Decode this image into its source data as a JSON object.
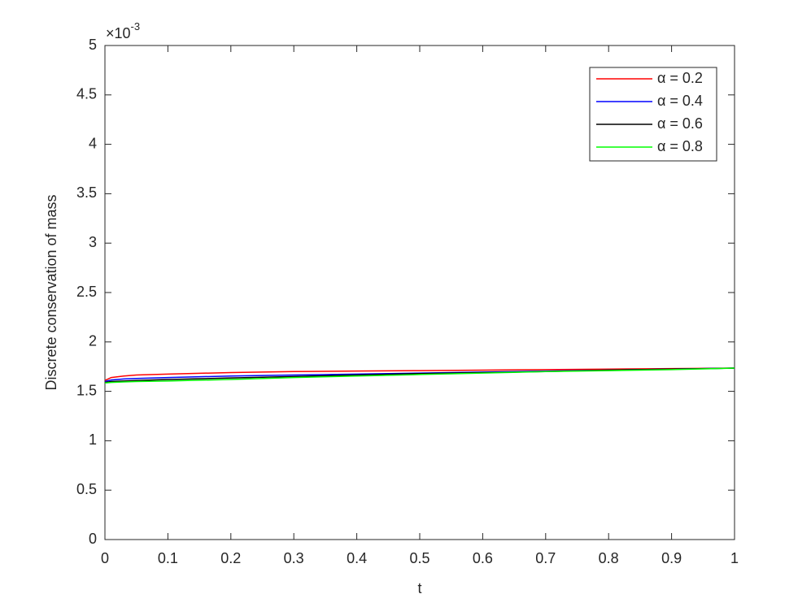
{
  "chart_data": {
    "type": "line",
    "xlabel": "t",
    "ylabel": "Discrete conservation of mass",
    "y_exponent": {
      "base": "×10",
      "power": "-3"
    },
    "x": [
      0,
      0.01,
      0.03,
      0.05,
      0.1,
      0.2,
      0.3,
      0.4,
      0.5,
      0.6,
      0.7,
      0.8,
      0.9,
      1
    ],
    "series": [
      {
        "name": "α = 0.2",
        "color": "#ff0000",
        "values": [
          1.61,
          1.64,
          1.655,
          1.665,
          1.675,
          1.69,
          1.7,
          1.705,
          1.71,
          1.715,
          1.72,
          1.725,
          1.73,
          1.735
        ]
      },
      {
        "name": "α = 0.4",
        "color": "#0000ff",
        "values": [
          1.6,
          1.615,
          1.625,
          1.63,
          1.64,
          1.655,
          1.665,
          1.675,
          1.685,
          1.695,
          1.705,
          1.715,
          1.725,
          1.735
        ]
      },
      {
        "name": "α = 0.6",
        "color": "#000000",
        "values": [
          1.59,
          1.6,
          1.605,
          1.61,
          1.62,
          1.635,
          1.65,
          1.665,
          1.68,
          1.69,
          1.7,
          1.715,
          1.725,
          1.735
        ]
      },
      {
        "name": "α = 0.8",
        "color": "#00ff00",
        "values": [
          1.585,
          1.59,
          1.595,
          1.6,
          1.605,
          1.62,
          1.64,
          1.655,
          1.67,
          1.685,
          1.7,
          1.71,
          1.72,
          1.735
        ]
      }
    ],
    "xlim": [
      0,
      1
    ],
    "xticks": [
      0,
      0.1,
      0.2,
      0.3,
      0.4,
      0.5,
      0.6,
      0.7,
      0.8,
      0.9,
      1
    ],
    "ylim": [
      0,
      5
    ],
    "yticks": [
      0,
      0.5,
      1,
      1.5,
      2,
      2.5,
      3,
      3.5,
      4,
      4.5,
      5
    ],
    "legend": "top-right",
    "grid": false
  }
}
